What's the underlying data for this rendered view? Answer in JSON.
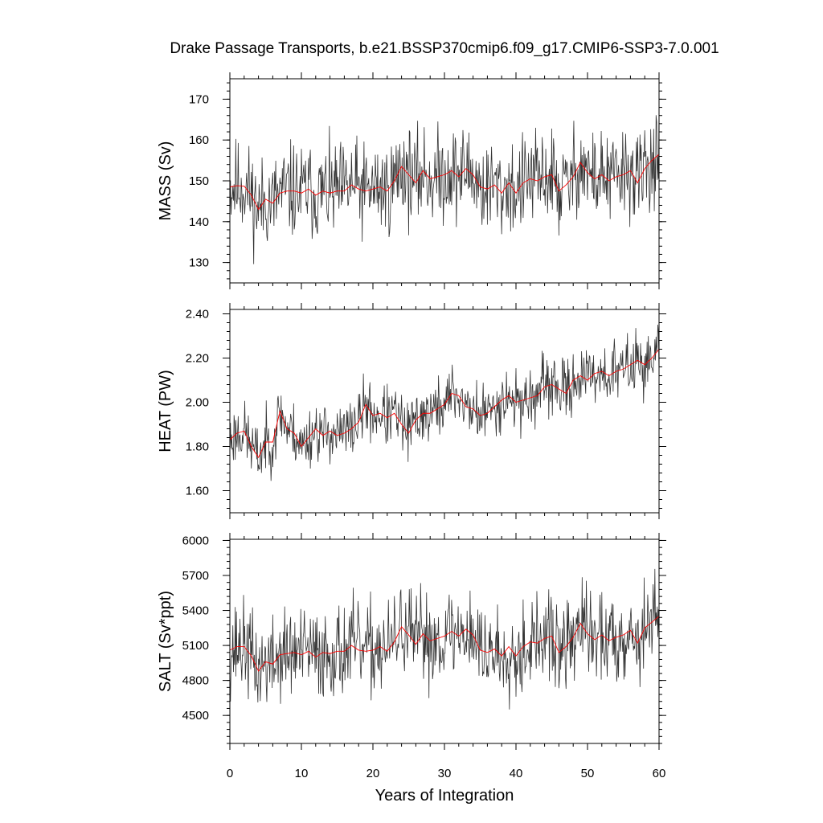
{
  "chart_data": {
    "type": "line",
    "title": "Drake Passage Transports, b.e21.BSSP370cmip6.f09_g17.CMIP6-SSP3-7.0.001",
    "xlabel": "Years of Integration",
    "xlim": [
      0,
      60
    ],
    "x_ticks": [
      "0",
      "10",
      "20",
      "30",
      "40",
      "50",
      "60"
    ],
    "colors": {
      "monthly": "#333333",
      "annual": "#ff0000",
      "frame": "#000000"
    },
    "panels": [
      {
        "ylabel": "MASS (Sv)",
        "ylim": [
          125,
          175
        ],
        "y_ticks": [
          "130",
          "140",
          "150",
          "160",
          "170"
        ],
        "y_tick_values": [
          130,
          140,
          150,
          160,
          170
        ],
        "monthly_seed": 11,
        "monthly_noise": 8.5,
        "monthly_min": 126,
        "monthly_max": 174,
        "annual_mean": [
          148.5,
          148.8,
          148.7,
          146.5,
          143.0,
          145.5,
          144.5,
          147.0,
          147.5,
          147.5,
          147.0,
          148.0,
          146.5,
          147.5,
          147.0,
          147.5,
          147.5,
          149.0,
          148.0,
          147.5,
          148.0,
          148.5,
          147.5,
          150.0,
          153.5,
          151.5,
          149.5,
          152.5,
          150.5,
          151.0,
          151.5,
          152.5,
          151.0,
          153.0,
          151.5,
          148.5,
          148.0,
          149.0,
          147.0,
          149.5,
          147.0,
          149.5,
          150.5,
          150.0,
          151.0,
          151.5,
          147.5,
          149.0,
          151.0,
          154.5,
          152.0,
          150.5,
          151.5,
          150.0,
          151.0,
          151.5,
          152.5,
          149.5,
          153.0,
          155.0,
          156.5
        ]
      },
      {
        "ylabel": "HEAT (PW)",
        "ylim": [
          1.5,
          2.42
        ],
        "y_ticks": [
          "1.60",
          "1.80",
          "2.00",
          "2.20",
          "2.40"
        ],
        "y_tick_values": [
          1.6,
          1.8,
          2.0,
          2.2,
          2.4
        ],
        "monthly_seed": 23,
        "monthly_noise": 0.1,
        "monthly_min": 1.5,
        "monthly_max": 2.41,
        "annual_mean": [
          1.83,
          1.86,
          1.87,
          1.8,
          1.75,
          1.82,
          1.82,
          1.96,
          1.88,
          1.86,
          1.8,
          1.84,
          1.88,
          1.85,
          1.87,
          1.85,
          1.86,
          1.88,
          1.91,
          1.99,
          1.94,
          1.95,
          1.93,
          1.95,
          1.9,
          1.86,
          1.92,
          1.95,
          1.95,
          1.97,
          1.99,
          2.04,
          2.03,
          1.98,
          1.97,
          1.94,
          1.95,
          1.98,
          2.01,
          2.03,
          2.0,
          2.01,
          2.02,
          2.03,
          2.07,
          2.08,
          2.06,
          2.04,
          2.1,
          2.12,
          2.1,
          2.13,
          2.14,
          2.12,
          2.14,
          2.15,
          2.17,
          2.19,
          2.17,
          2.2,
          2.24
        ]
      },
      {
        "ylabel": "SALT (Sv*ppt)",
        "ylim": [
          4260,
          6010
        ],
        "y_ticks": [
          "4500",
          "4800",
          "5100",
          "5400",
          "5700",
          "6000"
        ],
        "y_tick_values": [
          4500,
          4800,
          5100,
          5400,
          5700,
          6000
        ],
        "monthly_seed": 37,
        "monthly_noise": 290,
        "monthly_min": 4300,
        "monthly_max": 6000,
        "annual_mean": [
          5060,
          5090,
          5090,
          5010,
          4880,
          4960,
          4940,
          5020,
          5030,
          5040,
          5020,
          5050,
          5000,
          5040,
          5030,
          5050,
          5050,
          5100,
          5060,
          5050,
          5060,
          5090,
          5050,
          5130,
          5260,
          5190,
          5110,
          5200,
          5140,
          5160,
          5180,
          5220,
          5180,
          5240,
          5190,
          5060,
          5040,
          5070,
          5010,
          5090,
          5010,
          5090,
          5130,
          5120,
          5160,
          5180,
          5040,
          5090,
          5170,
          5290,
          5200,
          5150,
          5190,
          5140,
          5170,
          5190,
          5230,
          5120,
          5250,
          5300,
          5350
        ]
      }
    ]
  }
}
